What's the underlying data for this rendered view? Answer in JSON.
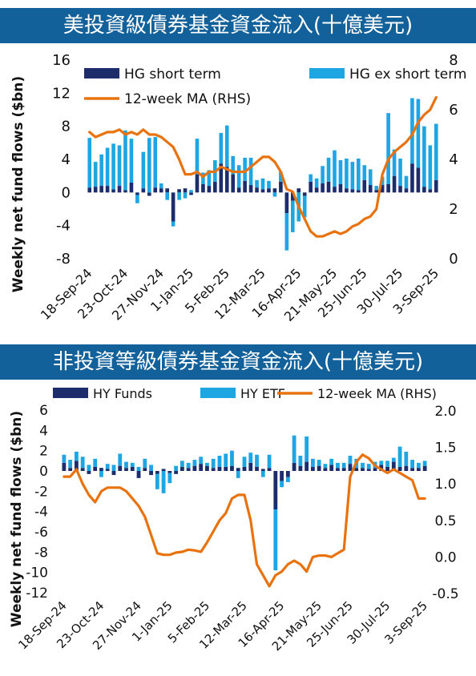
{
  "banners": {
    "top": "美投資級債券基金資金流入(十億美元)",
    "bottom": "非投資等級債券基金資金流入(十億美元)"
  },
  "colors": {
    "dark": "#1d2d6b",
    "light": "#1ea6e2",
    "ma": "#e8730e",
    "banner": "#12619b"
  },
  "chart_data": [
    {
      "type": "bar",
      "stacked": true,
      "ylabel": "Weekly net fund flows ($bn)",
      "ylim": [
        -8,
        16
      ],
      "yticks": [
        -8,
        -4,
        0,
        4,
        8,
        12,
        16
      ],
      "y2lim": [
        0,
        8
      ],
      "y2ticks": [
        0,
        2,
        4,
        6,
        8
      ],
      "xtick_labels": [
        "18-Sep-24",
        "23-Oct-24",
        "27-Nov-24",
        "1-Jan-25",
        "5-Feb-25",
        "12-Mar-25",
        "16-Apr-25",
        "21-May-25",
        "25-Jun-25",
        "30-Jul-25",
        "3-Sep-25"
      ],
      "legend": [
        {
          "label": "HG short term",
          "kind": "bar-dark"
        },
        {
          "label": "HG ex short term",
          "kind": "bar-light"
        },
        {
          "label": "12-week MA (RHS)",
          "kind": "line"
        }
      ],
      "series": [
        {
          "name": "HG short term",
          "values": [
            0.6,
            0.7,
            0.8,
            0.8,
            0.4,
            0.8,
            0.3,
            1.2,
            -0.3,
            0.5,
            -0.4,
            0.6,
            0.5,
            0.5,
            -3.5,
            0.4,
            0.5,
            -0.3,
            2.2,
            1.0,
            0.8,
            1.3,
            3.5,
            3.1,
            2.2,
            0.6,
            1.4,
            0.9,
            0.6,
            0.4,
            0.5,
            0.5,
            1.3,
            -2.5,
            -1.0,
            0.5,
            -0.4,
            1.3,
            0.6,
            1.1,
            1.3,
            0.7,
            1.0,
            0.5,
            0.4,
            0.3,
            1.5,
            0.9,
            0.3,
            0.9,
            1.0,
            2.0,
            0.8,
            0.5,
            3.5,
            3.0,
            0.7,
            0.4,
            1.5
          ]
        },
        {
          "name": "HG ex short term",
          "values": [
            6.0,
            3.0,
            3.8,
            4.6,
            5.5,
            4.9,
            7.2,
            5.3,
            -1.0,
            4.4,
            6.6,
            6.1,
            0.6,
            -0.9,
            -0.6,
            -0.9,
            -0.7,
            0.3,
            4.3,
            1.4,
            1.9,
            2.6,
            3.7,
            5.0,
            2.2,
            2.7,
            2.8,
            3.3,
            0.9,
            1.3,
            0.9,
            -0.5,
            1.2,
            -4.5,
            -3.8,
            -3.5,
            -2.6,
            0.9,
            1.1,
            2.1,
            2.9,
            4.4,
            2.9,
            3.6,
            3.3,
            3.8,
            1.8,
            1.9,
            0.5,
            1.0,
            8.6,
            3.2,
            3.3,
            1.5,
            7.9,
            8.3,
            7.3,
            5.3,
            6.8
          ]
        },
        {
          "name": "12-week MA (RHS)",
          "values": [
            5.1,
            4.9,
            5.0,
            5.1,
            5.1,
            5.2,
            5.0,
            5.1,
            5.0,
            5.2,
            5.0,
            5.0,
            4.9,
            4.7,
            4.5,
            4.0,
            3.4,
            3.4,
            3.5,
            3.3,
            3.5,
            3.5,
            3.7,
            3.6,
            3.5,
            3.5,
            3.5,
            3.7,
            3.9,
            4.1,
            4.1,
            3.9,
            3.5,
            2.8,
            2.7,
            2.1,
            1.6,
            1.1,
            0.9,
            0.9,
            1.0,
            1.1,
            1.0,
            1.1,
            1.3,
            1.4,
            1.6,
            1.7,
            2.0,
            3.4,
            4.0,
            4.3,
            4.5,
            4.7,
            5.0,
            5.5,
            5.8,
            6.0,
            6.5
          ]
        }
      ]
    },
    {
      "type": "bar",
      "stacked": true,
      "ylabel": "Weekly net fund flows ($bn)",
      "ylim": [
        -12,
        6
      ],
      "yticks": [
        -12,
        -10,
        -8,
        -6,
        -4,
        -2,
        0,
        2,
        4,
        6
      ],
      "y2lim": [
        -0.5,
        2.0
      ],
      "y2ticks": [
        -0.5,
        0.0,
        0.5,
        1.0,
        1.5,
        2.0
      ],
      "y2tick_labels": [
        "-0.5",
        "0.0",
        "0.5",
        "1.0",
        "1.5",
        "2.0"
      ],
      "xtick_labels": [
        "18-Sep-24",
        "23-Oct-24",
        "27-Nov-24",
        "1-Jan-25",
        "5-Feb-25",
        "12-Mar-25",
        "16-Apr-25",
        "21-May-25",
        "25-Jun-25",
        "30-Jul-25",
        "3-Sep-25"
      ],
      "legend": [
        {
          "label": "HY Funds",
          "kind": "bar-dark"
        },
        {
          "label": "HY ETF",
          "kind": "bar-light"
        },
        {
          "label": "12-week MA (RHS)",
          "kind": "line"
        }
      ],
      "series": [
        {
          "name": "HY Funds",
          "values": [
            0.8,
            0.3,
            1.0,
            0.3,
            -0.3,
            0.4,
            0.3,
            0.2,
            -0.4,
            0.5,
            0.3,
            0.4,
            -0.7,
            0.3,
            -0.4,
            -0.3,
            0.2,
            -0.2,
            -0.3,
            0.4,
            0.3,
            0.5,
            0.7,
            0.5,
            0.3,
            0.4,
            0.4,
            0.5,
            0.3,
            0.4,
            0.8,
            0.4,
            0.2,
            0.3,
            -3.8,
            -1.0,
            -0.6,
            0.8,
            0.5,
            0.9,
            0.4,
            0.5,
            0.3,
            0.6,
            0.3,
            0.3,
            0.7,
            0.3,
            0.3,
            0.2,
            0.3,
            0.6,
            0.4,
            0.9,
            0.4,
            0.5,
            0.3,
            0.3,
            0.5
          ]
        },
        {
          "name": "HY ETF",
          "values": [
            0.8,
            0.8,
            0.9,
            1.1,
            0.6,
            0.8,
            -0.6,
            0.5,
            0.6,
            1.2,
            0.6,
            0.4,
            0.4,
            0.9,
            0.6,
            -1.5,
            -2.2,
            -1.0,
            0.5,
            0.6,
            0.5,
            0.6,
            0.7,
            0.3,
            0.9,
            1.1,
            1.3,
            1.5,
            -0.7,
            1.0,
            1.0,
            1.2,
            -0.6,
            1.3,
            -6.0,
            -0.6,
            -0.5,
            2.7,
            1.0,
            2.5,
            0.8,
            0.6,
            0.4,
            0.6,
            0.5,
            0.5,
            0.8,
            0.9,
            0.5,
            0.5,
            0.6,
            0.4,
            0.6,
            0.4,
            2.0,
            1.4,
            0.8,
            0.5,
            0.5
          ]
        },
        {
          "name": "12-week MA (RHS)",
          "values": [
            1.1,
            1.1,
            1.2,
            1.0,
            0.85,
            0.75,
            0.9,
            0.95,
            0.95,
            0.95,
            0.9,
            0.8,
            0.7,
            0.55,
            0.3,
            0.05,
            0.03,
            0.03,
            0.06,
            0.07,
            0.1,
            0.09,
            0.07,
            0.2,
            0.35,
            0.5,
            0.6,
            0.8,
            0.85,
            0.85,
            0.5,
            -0.1,
            -0.25,
            -0.4,
            -0.25,
            -0.2,
            -0.1,
            -0.05,
            -0.1,
            -0.2,
            0.0,
            0.02,
            0.02,
            0.0,
            0.05,
            0.1,
            1.1,
            1.3,
            1.4,
            1.35,
            1.25,
            1.2,
            1.15,
            1.2,
            1.15,
            1.1,
            1.05,
            0.8,
            0.8
          ]
        }
      ]
    }
  ]
}
